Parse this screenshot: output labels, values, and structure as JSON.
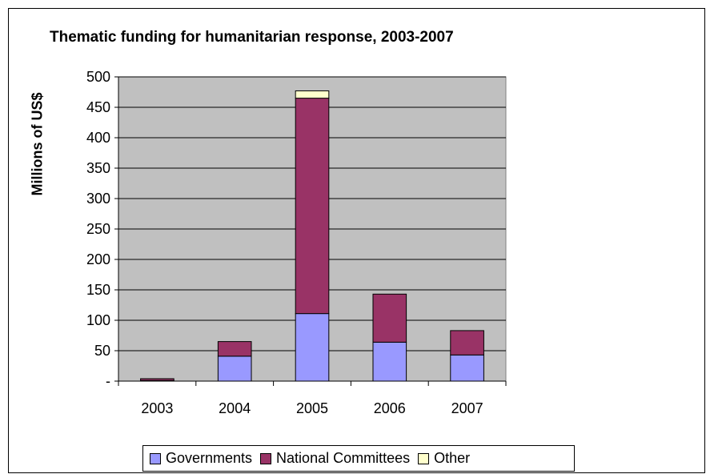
{
  "chart_data": {
    "type": "bar",
    "stacked": true,
    "title": "Thematic funding for humanitarian response, 2003-2007",
    "xlabel": "",
    "ylabel": "Millions of US$",
    "categories": [
      "2003",
      "2004",
      "2005",
      "2006",
      "2007"
    ],
    "series": [
      {
        "name": "Governments",
        "color": "#9999ff",
        "values": [
          1,
          41,
          111,
          64,
          43
        ]
      },
      {
        "name": "National Committees",
        "color": "#993366",
        "values": [
          3,
          24,
          354,
          79,
          40
        ]
      },
      {
        "name": "Other",
        "color": "#ffffcc",
        "values": [
          0,
          0,
          12,
          0,
          0
        ]
      }
    ],
    "ylim": [
      0,
      500
    ],
    "yticks": [
      0,
      50,
      100,
      150,
      200,
      250,
      300,
      350,
      400,
      450,
      500
    ],
    "ytick_labels": [
      "-",
      "50",
      "100",
      "150",
      "200",
      "250",
      "300",
      "350",
      "400",
      "450",
      "500"
    ],
    "grid": true,
    "plot_background": "#c0c0c0",
    "legend_position": "bottom"
  }
}
